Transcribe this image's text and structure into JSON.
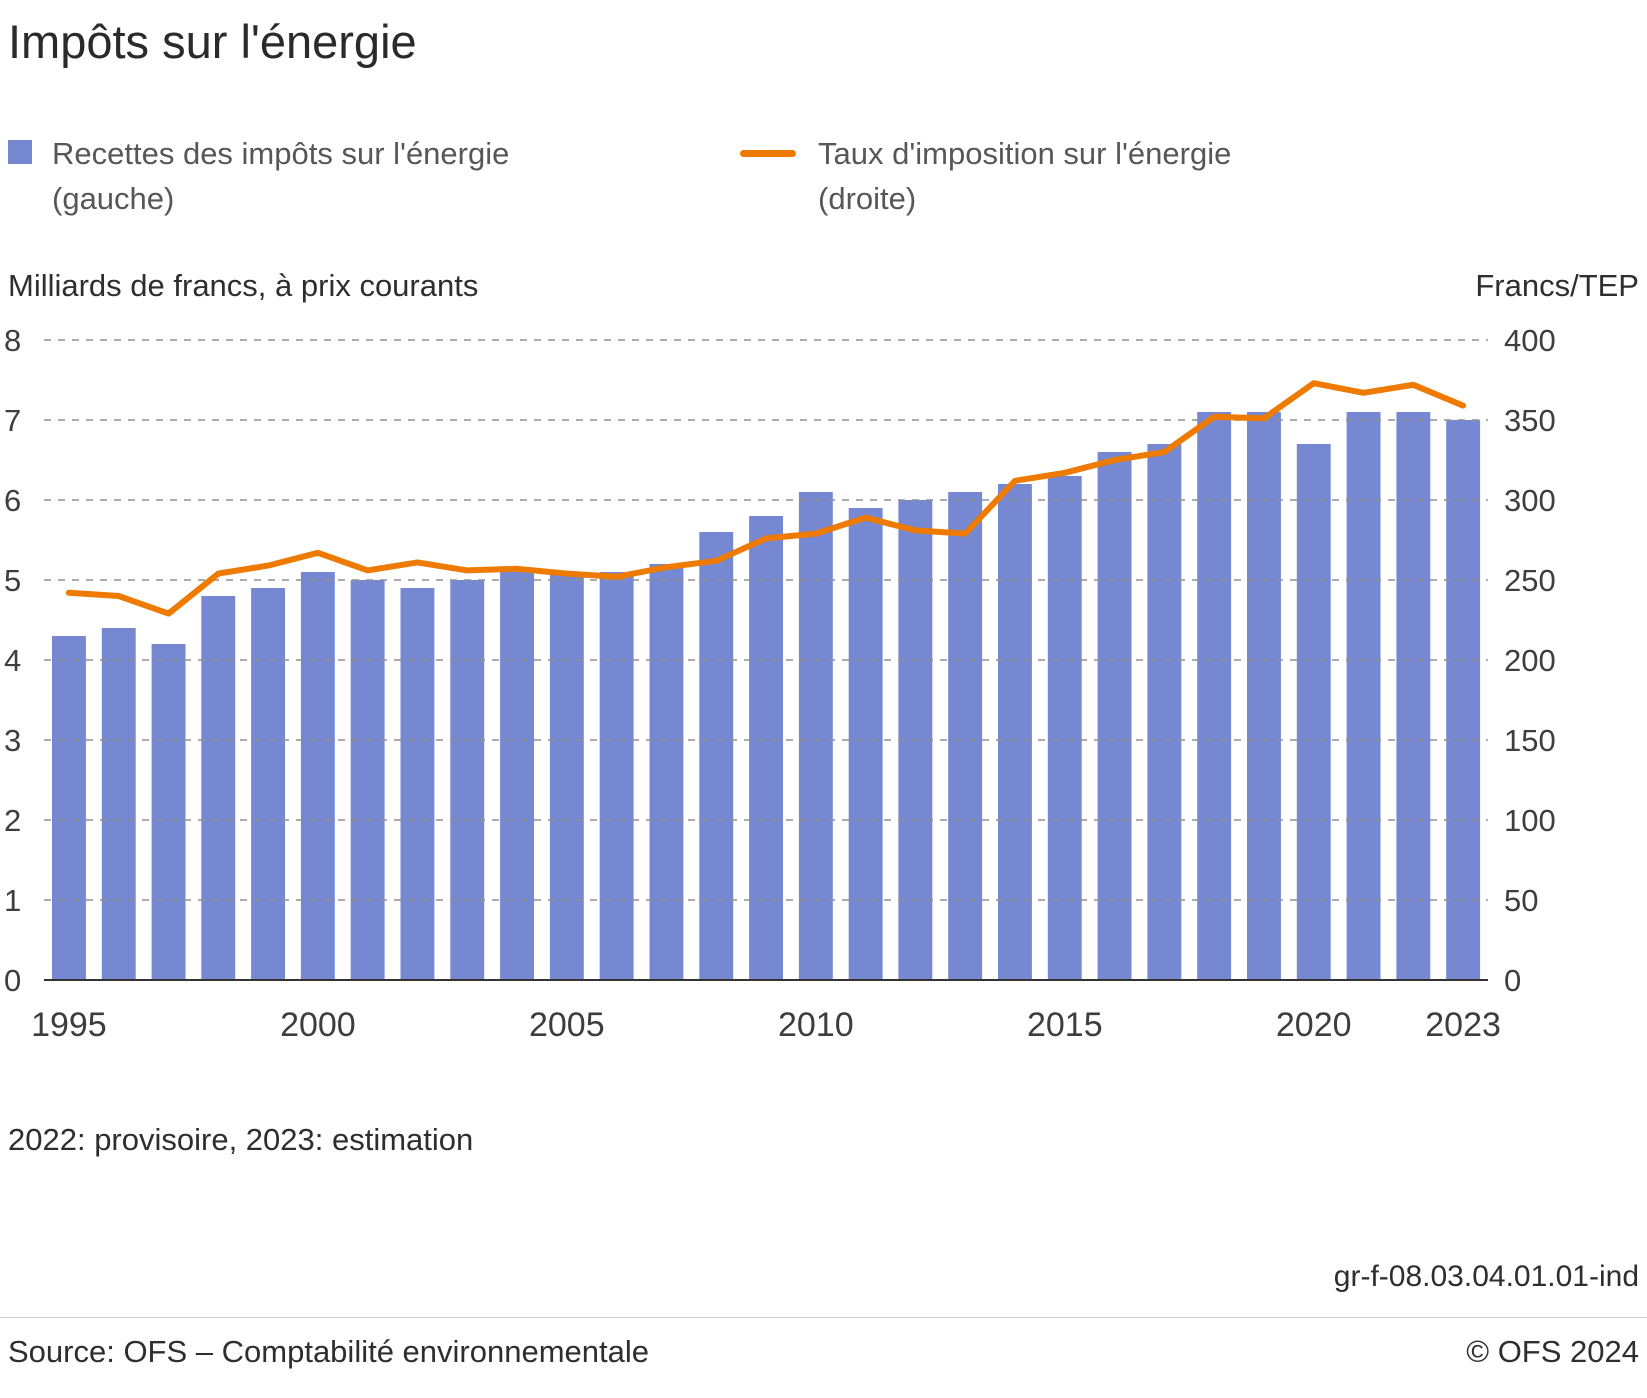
{
  "title": "Impôts sur l'énergie",
  "legend": {
    "items": [
      {
        "line1": "Recettes des impôts sur l'énergie",
        "line2": "(gauche)",
        "marker": "square",
        "color": "#7588d1"
      },
      {
        "line1": "Taux d'imposition sur l'énergie",
        "line2": "(droite)",
        "marker": "line",
        "color": "#ee7a00"
      }
    ]
  },
  "axis_titles": {
    "left": "Milliards de francs, à prix courants",
    "right": "Francs/TEP"
  },
  "footnote": "2022: provisoire, 2023: estimation",
  "chart_id": "gr-f-08.03.04.01.01-ind",
  "source": "Source: OFS – Comptabilité environnementale",
  "copyright": "© OFS 2024",
  "chart_data": {
    "type": "bar+line",
    "title": "Impôts sur l'énergie",
    "x": [
      1995,
      1996,
      1997,
      1998,
      1999,
      2000,
      2001,
      2002,
      2003,
      2004,
      2005,
      2006,
      2007,
      2008,
      2009,
      2010,
      2011,
      2012,
      2013,
      2014,
      2015,
      2016,
      2017,
      2018,
      2019,
      2020,
      2021,
      2022,
      2023
    ],
    "x_ticks": [
      1995,
      2000,
      2005,
      2010,
      2015,
      2020,
      2023
    ],
    "left_axis": {
      "label": "Milliards de francs, à prix courants",
      "min": 0,
      "max": 8,
      "ticks": [
        0,
        1,
        2,
        3,
        4,
        5,
        6,
        7,
        8
      ]
    },
    "right_axis": {
      "label": "Francs/TEP",
      "min": 0,
      "max": 400,
      "ticks": [
        0,
        50,
        100,
        150,
        200,
        250,
        300,
        350,
        400
      ]
    },
    "grid": "dashed horizontal",
    "legend_position": "top",
    "series": [
      {
        "name": "Recettes des impôts sur l'énergie (gauche)",
        "type": "bar",
        "axis": "left",
        "color": "#7588d1",
        "values": [
          4.3,
          4.4,
          4.2,
          4.8,
          4.9,
          5.1,
          5.0,
          4.9,
          5.0,
          5.1,
          5.1,
          5.1,
          5.2,
          5.6,
          5.8,
          6.1,
          5.9,
          6.0,
          6.1,
          6.2,
          6.3,
          6.6,
          6.7,
          7.1,
          7.1,
          6.7,
          7.1,
          7.1,
          7.0
        ]
      },
      {
        "name": "Taux d'imposition sur l'énergie (droite)",
        "type": "line",
        "axis": "right",
        "color": "#ee7a00",
        "values": [
          242,
          240,
          229,
          254,
          259,
          267,
          256,
          261,
          256,
          257,
          254,
          252,
          258,
          262,
          276,
          279,
          289,
          281,
          279,
          312,
          317,
          325,
          330,
          352,
          351,
          373,
          367,
          372,
          359
        ]
      }
    ]
  }
}
